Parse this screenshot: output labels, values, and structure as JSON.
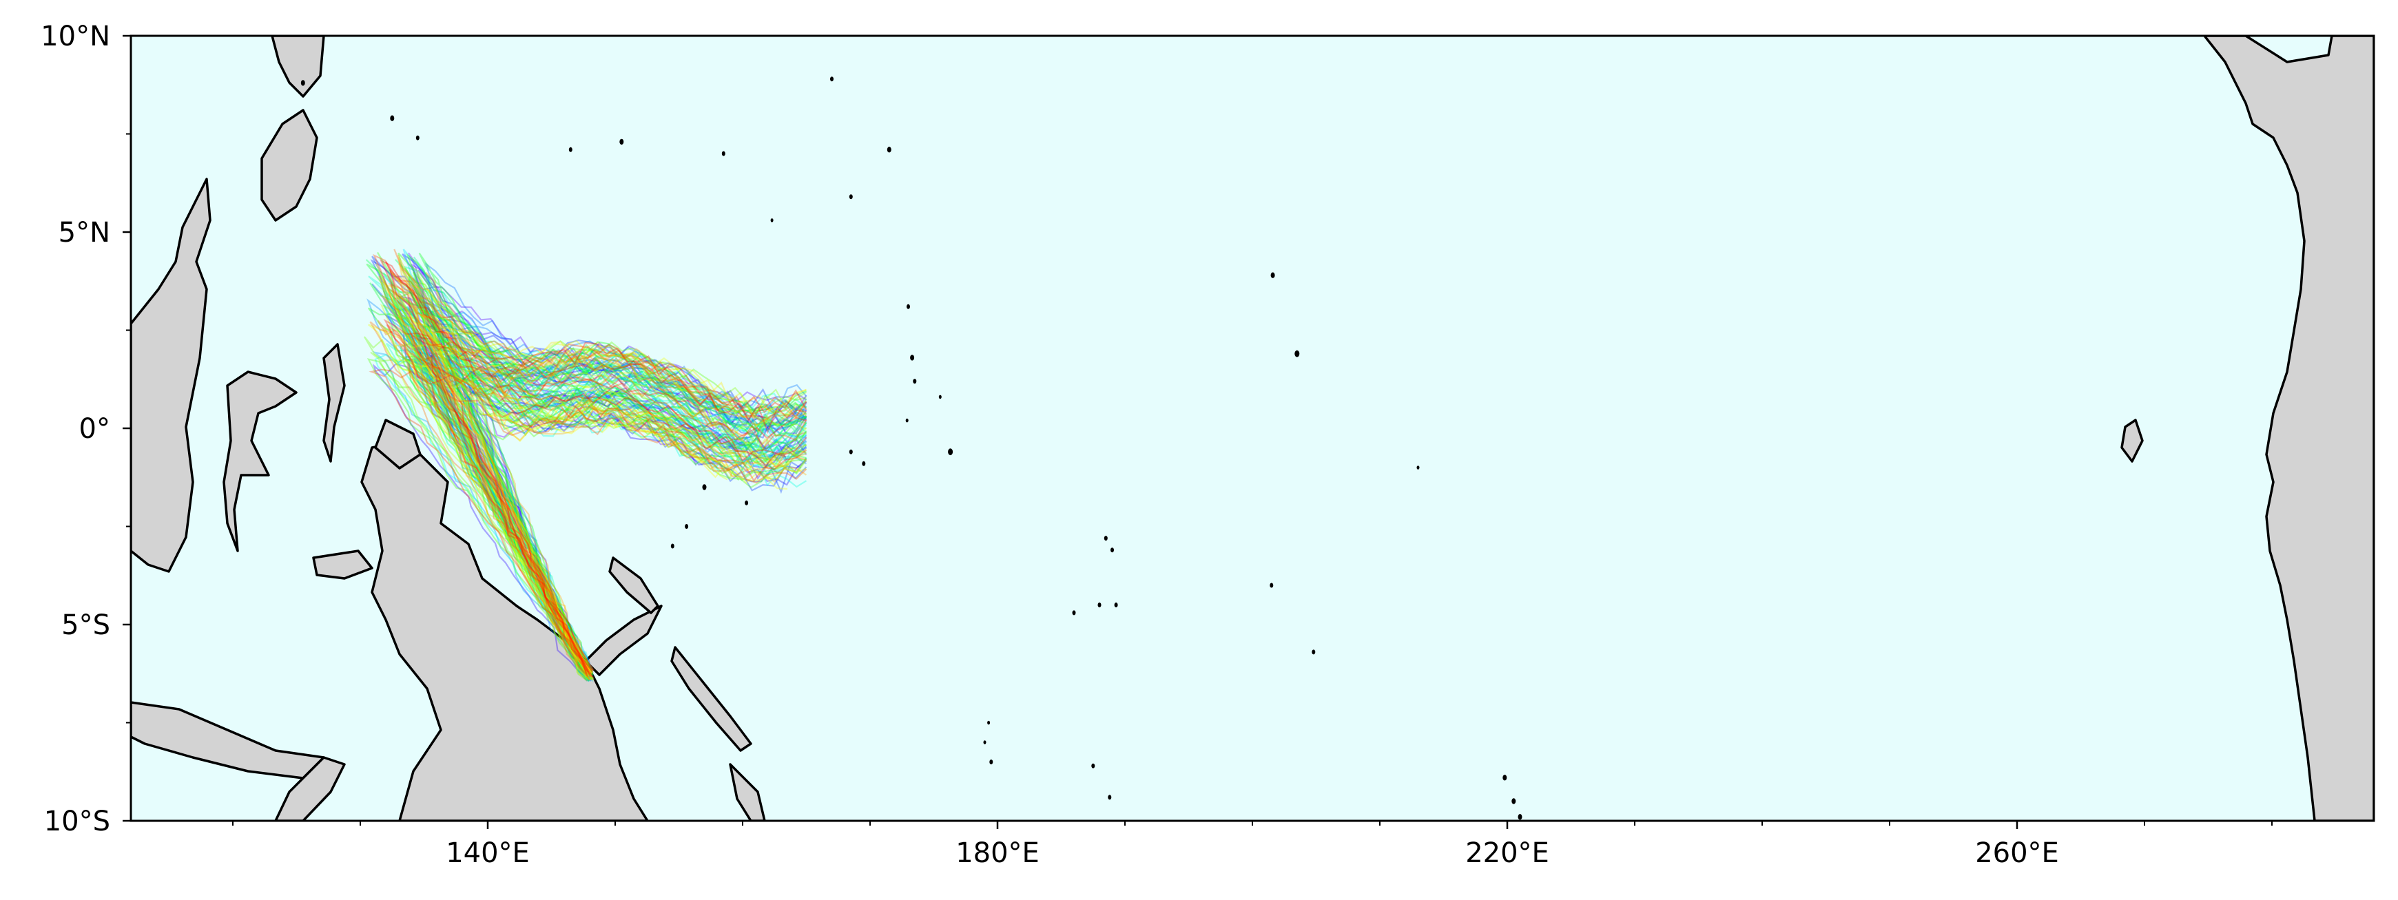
{
  "map": {
    "projection": "PlateCarree",
    "lon_range_deg_east": [
      112,
      288
    ],
    "lat_range_deg_north": [
      -10,
      10
    ],
    "colors": {
      "ocean": "#e6fdfd",
      "land": "#d3d3d3",
      "coastline": "#000000",
      "frame": "#000000"
    },
    "x_ticks": [
      {
        "lon": 140,
        "label": "140°E"
      },
      {
        "lon": 180,
        "label": "180°E"
      },
      {
        "lon": 220,
        "label": "220°E"
      },
      {
        "lon": 260,
        "label": "260°E"
      }
    ],
    "x_minor_ticks": [
      120,
      130,
      150,
      160,
      170,
      190,
      200,
      210,
      230,
      240,
      250,
      270,
      280
    ],
    "y_ticks": [
      {
        "lat": 10,
        "label": "10°N"
      },
      {
        "lat": 5,
        "label": "5°N"
      },
      {
        "lat": 0,
        "label": "0°"
      },
      {
        "lat": -5,
        "label": "5°S"
      },
      {
        "lat": -10,
        "label": "10°S"
      }
    ],
    "y_minor_ticks": [
      7.5,
      2.5,
      -2.5,
      -7.5
    ],
    "trajectories": {
      "count": 120,
      "line_opacity": 0.35,
      "release_point": {
        "lon": 148,
        "lat": -6.3
      },
      "colormap": "rainbow"
    }
  },
  "chart_data": {
    "type": "map-trajectories",
    "title": "",
    "xlim": [
      112,
      288
    ],
    "ylim": [
      -10,
      10
    ],
    "grid": false,
    "legend": "none",
    "series_summary": "particle trajectories released off New Guinea north coast drifting NW along coast then east along ~1°N to ~165°E"
  }
}
